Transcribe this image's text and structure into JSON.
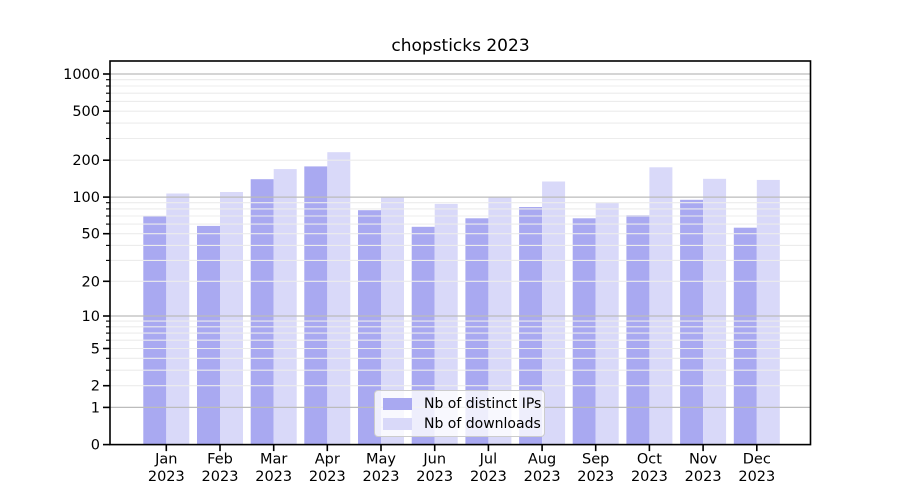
{
  "figure": {
    "title": "chopsticks 2023",
    "background": "#ffffff"
  },
  "chart_data": {
    "type": "bar",
    "title": "chopsticks 2023",
    "xlabel": "",
    "ylabel": "",
    "yscale": "log1p",
    "ylim": [
      0,
      1276
    ],
    "yticks": [
      1000,
      500,
      200,
      100,
      50,
      20,
      10,
      5,
      2,
      1,
      0
    ],
    "grid": "horizontal; gray major lines at decades 1/10/100/1000, faint minor log lines, drawn over bars",
    "categories": [
      "Jan",
      "Feb",
      "Mar",
      "Apr",
      "May",
      "Jun",
      "Jul",
      "Aug",
      "Sep",
      "Oct",
      "Nov",
      "Dec"
    ],
    "year_label": "2023",
    "legend": {
      "position": "lower center",
      "entries": [
        "Nb of distinct IPs",
        "Nb of downloads"
      ]
    },
    "series": [
      {
        "name": "Nb of distinct IPs",
        "color": "#a9a9f1",
        "values": [
          70,
          58,
          140,
          178,
          78,
          57,
          67,
          83,
          67,
          71,
          95,
          56
        ]
      },
      {
        "name": "Nb of downloads",
        "color": "#d9d9f9",
        "values": [
          107,
          110,
          169,
          232,
          100,
          88,
          100,
          134,
          90,
          175,
          141,
          138
        ]
      }
    ],
    "colors": {
      "major_grid": "#bcbcbc",
      "minor_grid": "#ececec",
      "spine": "#000000",
      "text": "#000000"
    }
  }
}
